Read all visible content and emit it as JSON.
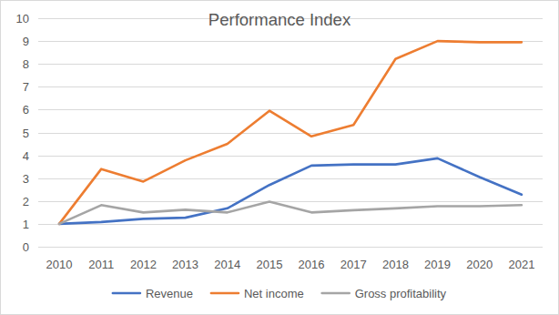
{
  "chart_data": {
    "type": "line",
    "title": "Performance Index",
    "categories": [
      "2010",
      "2011",
      "2012",
      "2013",
      "2014",
      "2015",
      "2016",
      "2017",
      "2018",
      "2019",
      "2020",
      "2021"
    ],
    "series": [
      {
        "name": "Revenue",
        "color": "#4472c4",
        "values": [
          1.0,
          1.08,
          1.22,
          1.27,
          1.68,
          2.7,
          3.55,
          3.6,
          3.6,
          3.87,
          3.05,
          2.28
        ]
      },
      {
        "name": "Net income",
        "color": "#ed7d31",
        "values": [
          1.0,
          3.4,
          2.85,
          3.78,
          4.5,
          5.95,
          4.83,
          5.33,
          8.22,
          9.0,
          8.95,
          8.95
        ]
      },
      {
        "name": "Gross profitability",
        "color": "#a5a5a5",
        "values": [
          1.0,
          1.82,
          1.5,
          1.62,
          1.5,
          1.97,
          1.5,
          1.6,
          1.68,
          1.77,
          1.77,
          1.82
        ]
      }
    ],
    "ylim": [
      0,
      10
    ],
    "yticks": [
      0,
      1,
      2,
      3,
      4,
      5,
      6,
      7,
      8,
      9,
      10
    ],
    "grid": true,
    "legend": "bottom"
  }
}
